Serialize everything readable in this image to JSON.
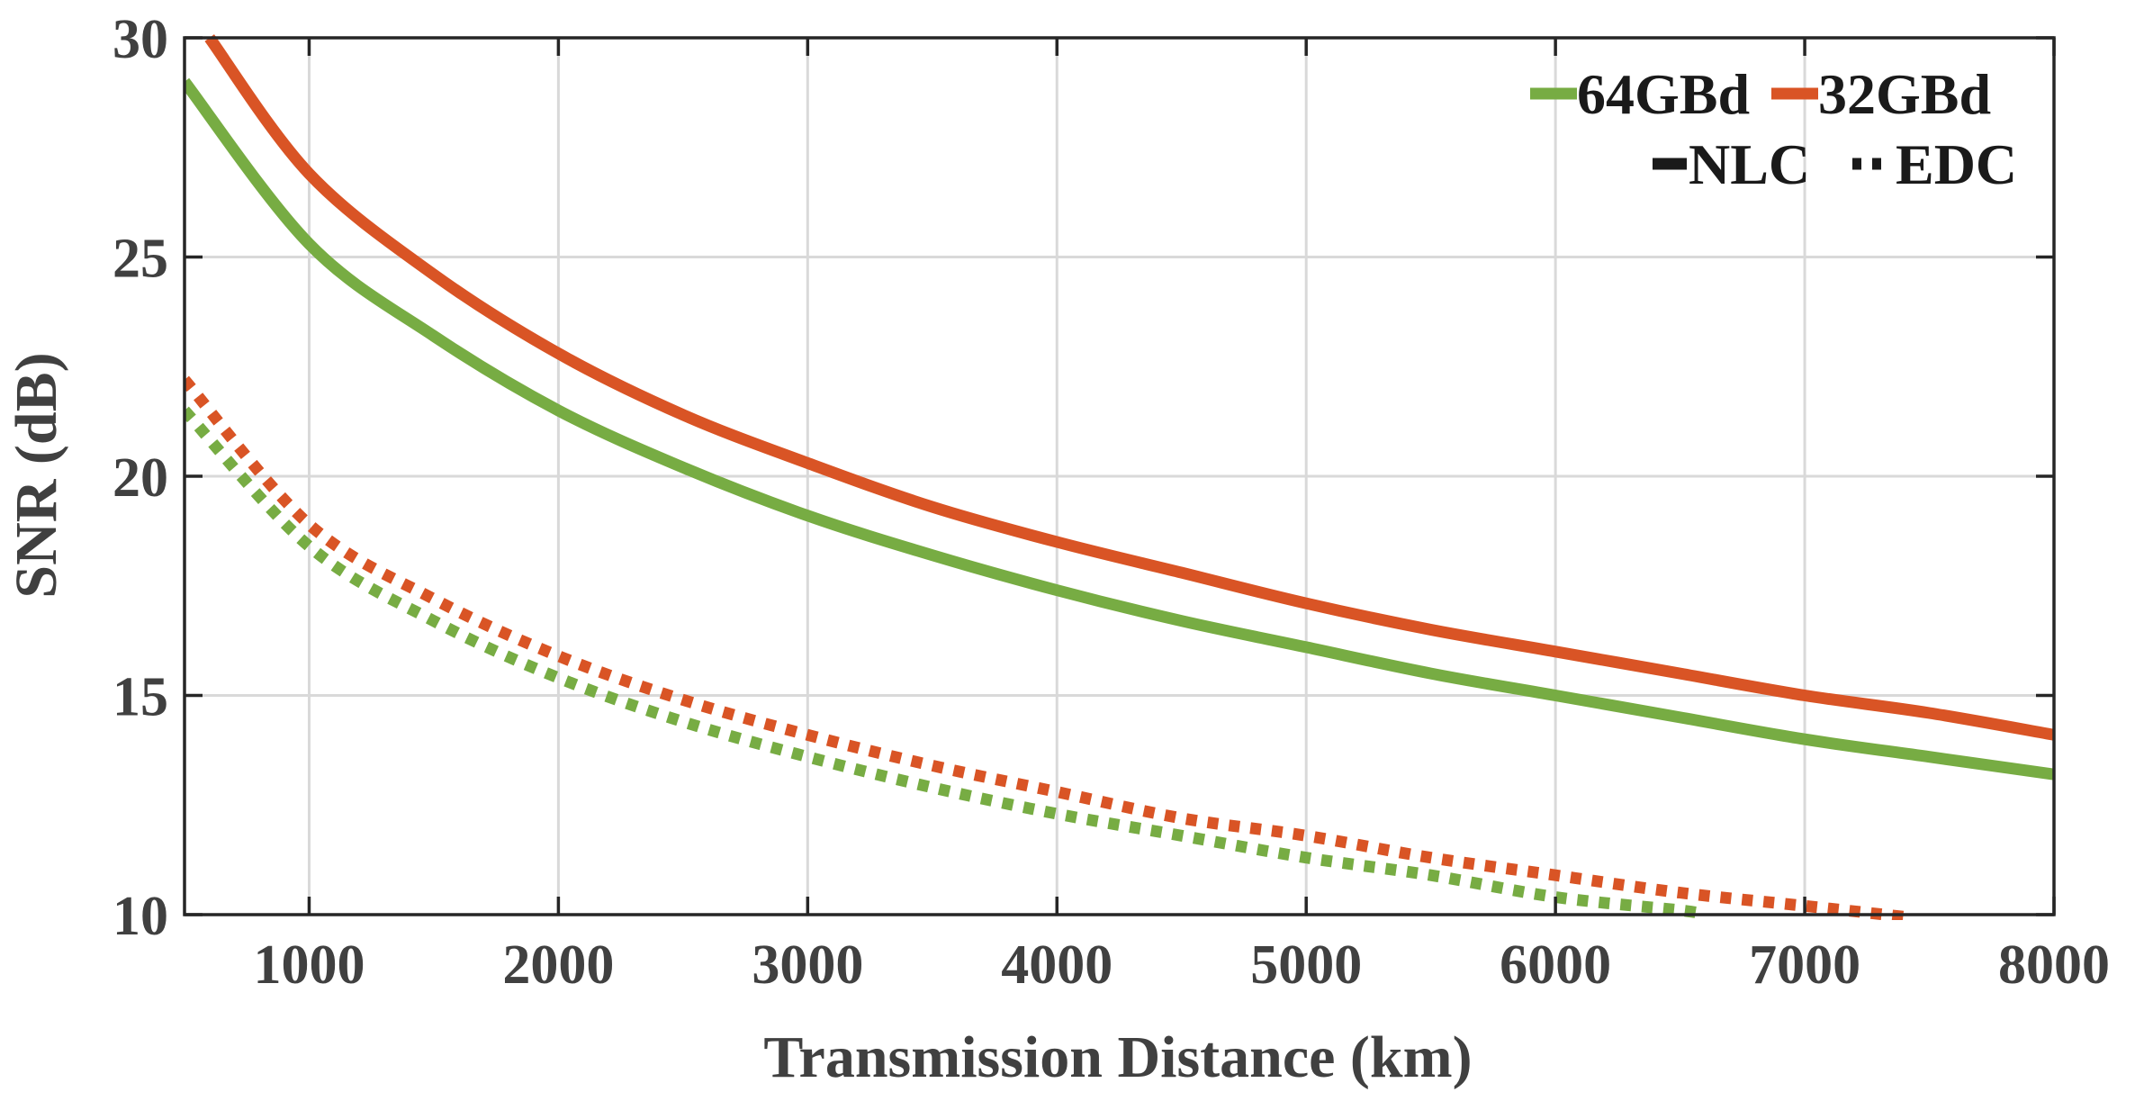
{
  "chart_data": {
    "type": "line",
    "title": "",
    "xlabel": "Transmission Distance (km)",
    "ylabel": "SNR (dB)",
    "xlim": [
      500,
      8000
    ],
    "ylim": [
      10,
      30
    ],
    "xticks": [
      1000,
      2000,
      3000,
      4000,
      5000,
      6000,
      7000,
      8000
    ],
    "yticks": [
      10,
      15,
      20,
      25,
      30
    ],
    "xtick_labels": [
      "1000",
      "2000",
      "3000",
      "4000",
      "5000",
      "6000",
      "7000",
      "8000"
    ],
    "ytick_labels": [
      "10",
      "15",
      "20",
      "25",
      "30"
    ],
    "grid": true,
    "legend_position": "top-right",
    "legend": {
      "colors": [
        {
          "label": "64GBd",
          "color": "#77ac43"
        },
        {
          "label": "32GBd",
          "color": "#d95425"
        }
      ],
      "styles": [
        {
          "label": "NLC",
          "linestyle": "solid",
          "color": "#1a1a1a"
        },
        {
          "label": "EDC",
          "linestyle": "dotted",
          "color": "#1a1a1a"
        }
      ]
    },
    "series": [
      {
        "name": "64GBd NLC",
        "color": "#77ac43",
        "linestyle": "solid",
        "x": [
          500,
          1000,
          1500,
          2000,
          2500,
          3000,
          3500,
          4000,
          4500,
          5000,
          5500,
          6000,
          6500,
          7000,
          7500,
          8000
        ],
        "y": [
          29.0,
          25.3,
          23.2,
          21.5,
          20.2,
          19.1,
          18.2,
          17.4,
          16.7,
          16.1,
          15.5,
          15.0,
          14.5,
          14.0,
          13.6,
          13.2
        ]
      },
      {
        "name": "32GBd NLC",
        "color": "#d95425",
        "linestyle": "solid",
        "x": [
          600,
          1000,
          1500,
          2000,
          2500,
          3000,
          3500,
          4000,
          4500,
          5000,
          5500,
          6000,
          6500,
          7000,
          7500,
          8000
        ],
        "y": [
          30.0,
          26.9,
          24.6,
          22.8,
          21.4,
          20.3,
          19.3,
          18.5,
          17.8,
          17.1,
          16.5,
          16.0,
          15.5,
          15.0,
          14.6,
          14.1
        ]
      },
      {
        "name": "64GBd EDC",
        "color": "#77ac43",
        "linestyle": "dotted",
        "x": [
          500,
          1000,
          1500,
          2000,
          2500,
          3000,
          3500,
          4000,
          4500,
          5000,
          5500,
          6000,
          6500,
          6600
        ],
        "y": [
          21.5,
          18.4,
          16.7,
          15.4,
          14.4,
          13.6,
          12.9,
          12.3,
          11.8,
          11.3,
          10.9,
          10.4,
          10.1,
          10.0
        ]
      },
      {
        "name": "32GBd EDC",
        "color": "#d95425",
        "linestyle": "dotted",
        "x": [
          500,
          1000,
          1500,
          2000,
          2500,
          3000,
          3500,
          4000,
          4500,
          5000,
          5500,
          6000,
          6500,
          7000,
          7400
        ],
        "y": [
          22.2,
          18.9,
          17.2,
          15.9,
          14.9,
          14.1,
          13.4,
          12.8,
          12.2,
          11.8,
          11.3,
          10.9,
          10.5,
          10.2,
          9.95
        ]
      }
    ]
  }
}
